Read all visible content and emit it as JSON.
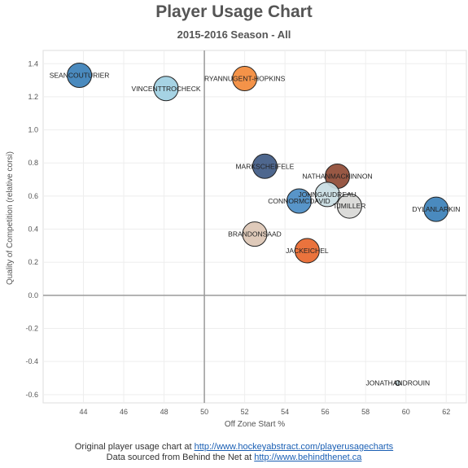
{
  "chart_data": {
    "type": "scatter",
    "title": "Player Usage Chart",
    "subtitle": "2015-2016 Season - All",
    "xlabel": "Off Zone Start %",
    "ylabel": "Quality of Competition (relative corsi)",
    "xlim": [
      42,
      63
    ],
    "ylim": [
      -0.65,
      1.48
    ],
    "x_ticks": [
      "44",
      "46",
      "48",
      "50",
      "52",
      "54",
      "56",
      "58",
      "60",
      "62"
    ],
    "y_ticks": [
      "1.4",
      "1.2",
      "1.0",
      "0.8",
      "0.6",
      "0.4",
      "0.2",
      "0.0",
      "-0.2",
      "-0.4",
      "-0.6"
    ],
    "reference_lines": {
      "x": 50,
      "y": 0
    },
    "grid": true,
    "points": [
      {
        "label": "SEANCOUTURIER",
        "x": 43.8,
        "y": 1.33,
        "color": "#3b80b9"
      },
      {
        "label": "VINCENTTROCHECK",
        "x": 48.1,
        "y": 1.25,
        "color": "#9ecfe2"
      },
      {
        "label": "RYANNUGENT-HOPKINS",
        "x": 52.0,
        "y": 1.31,
        "color": "#f38a3a"
      },
      {
        "label": "MARKSCHEIFELE",
        "x": 53.0,
        "y": 0.78,
        "color": "#3f5a84"
      },
      {
        "label": "NATHANMACKINNON",
        "x": 56.6,
        "y": 0.72,
        "color": "#8f4a34"
      },
      {
        "label": "JOHNGAUDREAU",
        "x": 56.1,
        "y": 0.61,
        "color": "#c9dde3"
      },
      {
        "label": "CONNORMCDAVID",
        "x": 54.7,
        "y": 0.57,
        "color": "#4a8cc4"
      },
      {
        "label": "TJMILLER",
        "x": 57.2,
        "y": 0.54,
        "color": "#d8d8d6"
      },
      {
        "label": "DYLANLARKIN",
        "x": 61.5,
        "y": 0.52,
        "color": "#3b80b9"
      },
      {
        "label": "BRANDONSAAD",
        "x": 52.5,
        "y": 0.37,
        "color": "#dcc6b4"
      },
      {
        "label": "JACKEICHEL",
        "x": 55.1,
        "y": 0.27,
        "color": "#e8672c"
      },
      {
        "label": "JONATHANDROUIN",
        "x": 59.6,
        "y": -0.53,
        "color": "#c9dde3"
      }
    ]
  },
  "footer": {
    "line1_prefix": "Original player usage chart at ",
    "line1_link": "http://www.hockeyabstract.com/playerusagecharts",
    "line2_prefix": "Data sourced from Behind the Net at ",
    "line2_link": "http://www.behindthenet.ca"
  }
}
